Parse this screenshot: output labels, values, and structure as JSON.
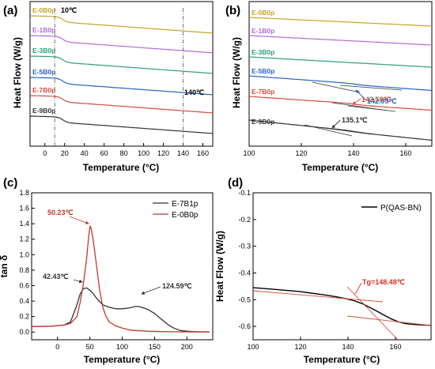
{
  "chart_data": [
    {
      "panel": "(a)",
      "type": "line",
      "xlabel": "Temperature (°C)",
      "ylabel": "Heat Flow (W/g)",
      "xlim": [
        -15,
        170
      ],
      "xticks": [
        0,
        20,
        40,
        60,
        80,
        100,
        120,
        140,
        160
      ],
      "series": [
        {
          "name": "E-0B0p",
          "color": "#c9a227",
          "offset": 6.0
        },
        {
          "name": "E-1B0p",
          "color": "#b36bd6",
          "offset": 5.0
        },
        {
          "name": "E-3B0p",
          "color": "#2e9e7a",
          "offset": 4.0
        },
        {
          "name": "E-5B0p",
          "color": "#2563c9",
          "offset": 3.0
        },
        {
          "name": "E-7B0p",
          "color": "#d94a3d",
          "offset": 2.0
        },
        {
          "name": "E-9B0p",
          "color": "#333333",
          "offset": 1.0
        }
      ],
      "annotations": [
        {
          "text": "10℃",
          "x": 10
        },
        {
          "text": "140℃",
          "x": 140
        }
      ]
    },
    {
      "panel": "(b)",
      "type": "line",
      "xlabel": "Temperature (°C)",
      "ylabel": "Heat Flow (W/g)",
      "xlim": [
        100,
        170
      ],
      "xticks": [
        100,
        120,
        140,
        160
      ],
      "series": [
        {
          "name": "E-0B0p",
          "color": "#c9a227"
        },
        {
          "name": "E-1B0p",
          "color": "#b36bd6"
        },
        {
          "name": "E-3B0p",
          "color": "#2e9e7a"
        },
        {
          "name": "E-5B0p",
          "color": "#2563c9"
        },
        {
          "name": "E-7B0p",
          "color": "#d94a3d"
        },
        {
          "name": "E-9B0p",
          "color": "#333333"
        }
      ],
      "annotations": [
        {
          "text": "142.99℃",
          "series": "E-5B0p",
          "color": "#2563c9"
        },
        {
          "text": "142.58℃",
          "series": "E-7B0p",
          "color": "#d94a3d"
        },
        {
          "text": "135.1℃",
          "series": "E-9B0p",
          "color": "#333333"
        }
      ]
    },
    {
      "panel": "(c)",
      "type": "line",
      "xlabel": "Temperature (°C)",
      "ylabel": "tan δ",
      "xlim": [
        -40,
        240
      ],
      "ylim": [
        -0.1,
        1.8
      ],
      "xticks": [
        0,
        50,
        100,
        150,
        200
      ],
      "yticks": [
        0.0,
        0.2,
        0.4,
        0.6,
        0.8,
        1.0,
        1.2,
        1.4,
        1.6,
        1.8
      ],
      "legend": "top-right",
      "series": [
        {
          "name": "E-7B1p",
          "color": "#333333",
          "x": [
            -40,
            -10,
            10,
            20,
            30,
            35,
            40,
            45,
            50,
            55,
            60,
            70,
            80,
            90,
            100,
            110,
            120,
            124.59,
            130,
            140,
            150,
            160,
            170,
            180,
            190,
            200,
            210,
            220,
            235
          ],
          "y": [
            0.07,
            0.075,
            0.09,
            0.13,
            0.35,
            0.49,
            0.56,
            0.57,
            0.54,
            0.5,
            0.44,
            0.35,
            0.32,
            0.3,
            0.3,
            0.31,
            0.33,
            0.33,
            0.32,
            0.29,
            0.24,
            0.17,
            0.1,
            0.05,
            0.02,
            0.01,
            0.005,
            0.003,
            0.002
          ]
        },
        {
          "name": "E-0B0p",
          "color": "#c0392b",
          "x": [
            -40,
            -10,
            10,
            20,
            30,
            35,
            40,
            45,
            48,
            50.23,
            52,
            55,
            60,
            65,
            70,
            75,
            80,
            90,
            100,
            110,
            120,
            140,
            160,
            180,
            200,
            220,
            235
          ],
          "y": [
            0.07,
            0.075,
            0.09,
            0.11,
            0.2,
            0.38,
            0.62,
            0.95,
            1.22,
            1.37,
            1.34,
            1.2,
            0.88,
            0.55,
            0.32,
            0.2,
            0.13,
            0.08,
            0.05,
            0.03,
            0.02,
            0.01,
            0.005,
            0.003,
            0.002,
            0.001,
            0.001
          ]
        }
      ],
      "annotations": [
        {
          "text": "50.23℃",
          "color": "#c0392b"
        },
        {
          "text": "42.43℃",
          "color": "#333333"
        },
        {
          "text": "124.59℃",
          "color": "#333333"
        }
      ]
    },
    {
      "panel": "(d)",
      "type": "line",
      "xlabel": "Temperature (°C)",
      "ylabel": "Heat Flow (W/g)",
      "xlim": [
        100,
        175
      ],
      "ylim": [
        -0.65,
        -0.1
      ],
      "xticks": [
        100,
        120,
        140,
        160
      ],
      "yticks": [
        -0.6,
        -0.5,
        -0.4,
        -0.3,
        -0.2,
        -0.1
      ],
      "legend": "top-right",
      "series": [
        {
          "name": "P(QAS-BN)",
          "color": "#000000",
          "x": [
            100,
            110,
            120,
            130,
            135,
            140,
            143,
            146,
            149,
            152,
            155,
            158,
            161,
            164,
            168,
            172,
            175
          ],
          "y": [
            -0.455,
            -0.462,
            -0.47,
            -0.482,
            -0.489,
            -0.498,
            -0.505,
            -0.515,
            -0.528,
            -0.542,
            -0.557,
            -0.571,
            -0.582,
            -0.589,
            -0.593,
            -0.595,
            -0.596
          ]
        }
      ],
      "annotations": [
        {
          "text": "Tg=148.48℃",
          "color": "#d93025"
        }
      ]
    }
  ]
}
